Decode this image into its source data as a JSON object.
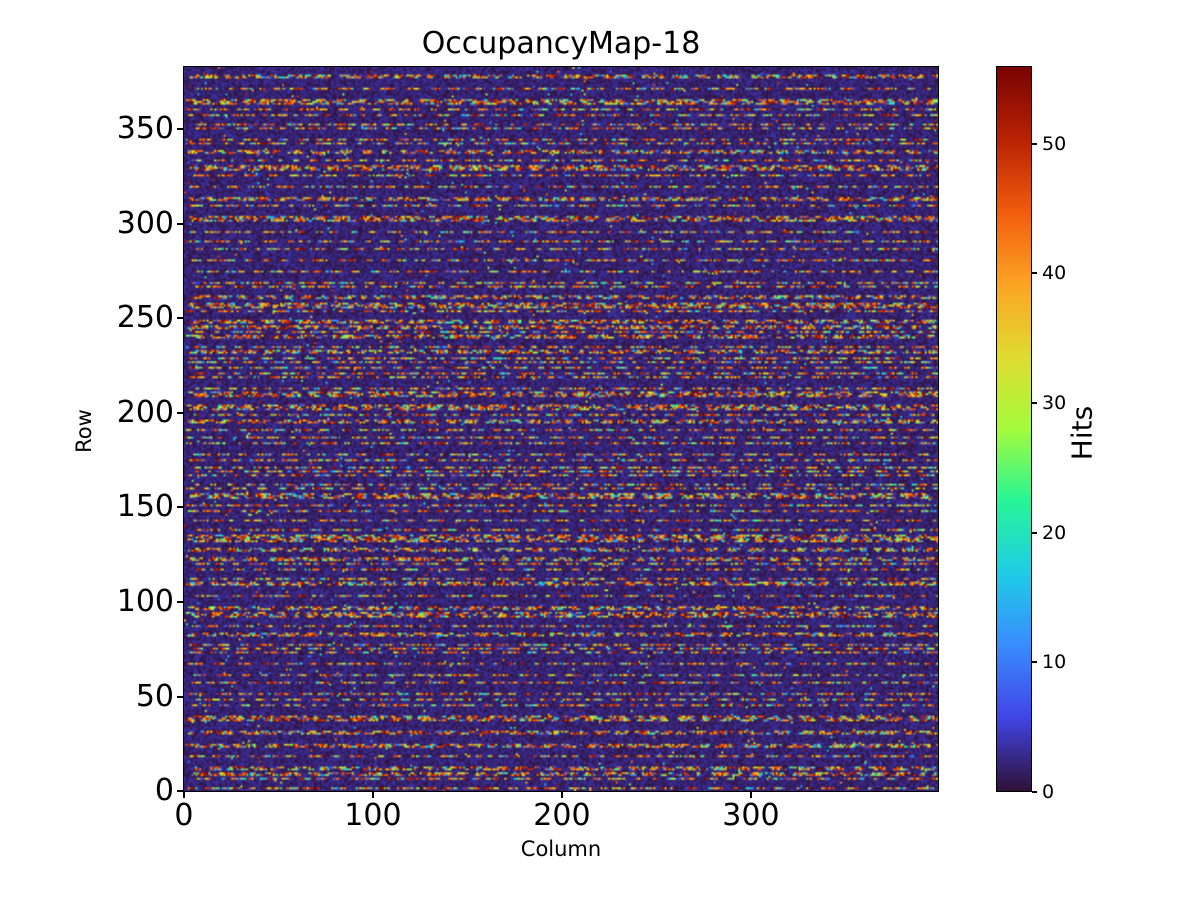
{
  "window": {
    "background_color": "#ffffff",
    "text_color": "#000000"
  },
  "chart_data": {
    "type": "heatmap",
    "title": "OccupancyMap-18",
    "xlabel": "Column",
    "ylabel": "Row",
    "colorbar_label": "Hits",
    "n_columns": 400,
    "n_rows": 384,
    "xlim": [
      0,
      400
    ],
    "ylim": [
      0,
      384
    ],
    "vmin": 0,
    "vmax": 56,
    "xticks": [
      0,
      100,
      200,
      300
    ],
    "yticks": [
      0,
      50,
      100,
      150,
      200,
      250,
      300,
      350
    ],
    "colorbar_ticks": [
      0,
      10,
      20,
      30,
      40,
      50
    ],
    "colormap": "turbo",
    "origin": "lower",
    "grid": false,
    "legend": "none",
    "pattern": {
      "description": "Sparse random pixel-occupancy map: horizontal dash runs of high hit counts (red/orange, 40-56 hits) occur on roughly every 3rd-4th row over a near-zero dark-purple background (0-4 hits); mid-value cells (5-40 hits) appear as blue/cyan/green/yellow speckles inside the runs; rare isolated bright cells elsewhere.",
      "seed": 18,
      "row_active_probability": 0.27,
      "max_inactive_gap_rows": 5,
      "gap_length_cells_min": 1,
      "gap_length_cells_max": 6,
      "run_length_cells_min": 2,
      "run_length_cells_max": 9,
      "high_value_fraction_in_runs": 0.55,
      "high_value_min": 40,
      "high_value_max": 56,
      "mid_value_min": 5,
      "mid_value_max": 40,
      "background_value_max": 3.5,
      "isolated_bright_cell_probability": 0.008
    },
    "colormap_anchors": [
      [
        0.0,
        48,
        18,
        59
      ],
      [
        0.1,
        65,
        69,
        230
      ],
      [
        0.2,
        57,
        140,
        253
      ],
      [
        0.3,
        31,
        205,
        231
      ],
      [
        0.4,
        39,
        245,
        152
      ],
      [
        0.5,
        164,
        252,
        60
      ],
      [
        0.6,
        224,
        220,
        47
      ],
      [
        0.7,
        252,
        165,
        36
      ],
      [
        0.8,
        242,
        93,
        14
      ],
      [
        0.9,
        186,
        35,
        4
      ],
      [
        1.0,
        122,
        4,
        3
      ]
    ]
  }
}
